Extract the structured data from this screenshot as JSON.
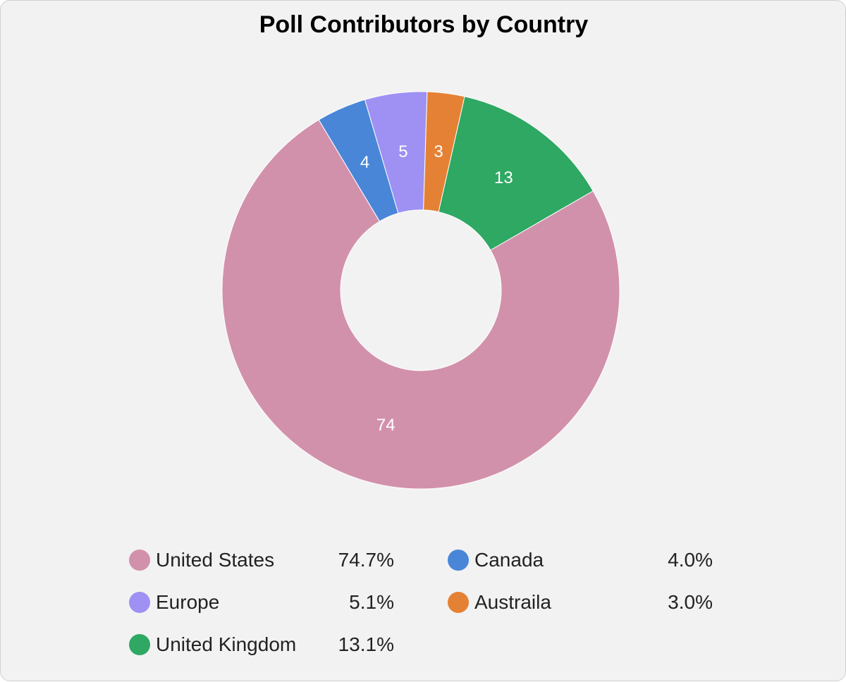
{
  "chart_data": {
    "type": "pie",
    "title": "Poll Contributors by Country",
    "donut": true,
    "slices": [
      {
        "label": "United States",
        "value": 74,
        "percent": "74.7%",
        "color": "#d291ab"
      },
      {
        "label": "Canada",
        "value": 4,
        "percent": "4.0%",
        "color": "#4a86d8"
      },
      {
        "label": "Europe",
        "value": 5,
        "percent": "5.1%",
        "color": "#9e91f3"
      },
      {
        "label": "Austraila",
        "value": 3,
        "percent": "3.0%",
        "color": "#e58134"
      },
      {
        "label": "United Kingdom",
        "value": 13,
        "percent": "13.1%",
        "color": "#2ea862"
      }
    ],
    "legend_position": "bottom"
  }
}
